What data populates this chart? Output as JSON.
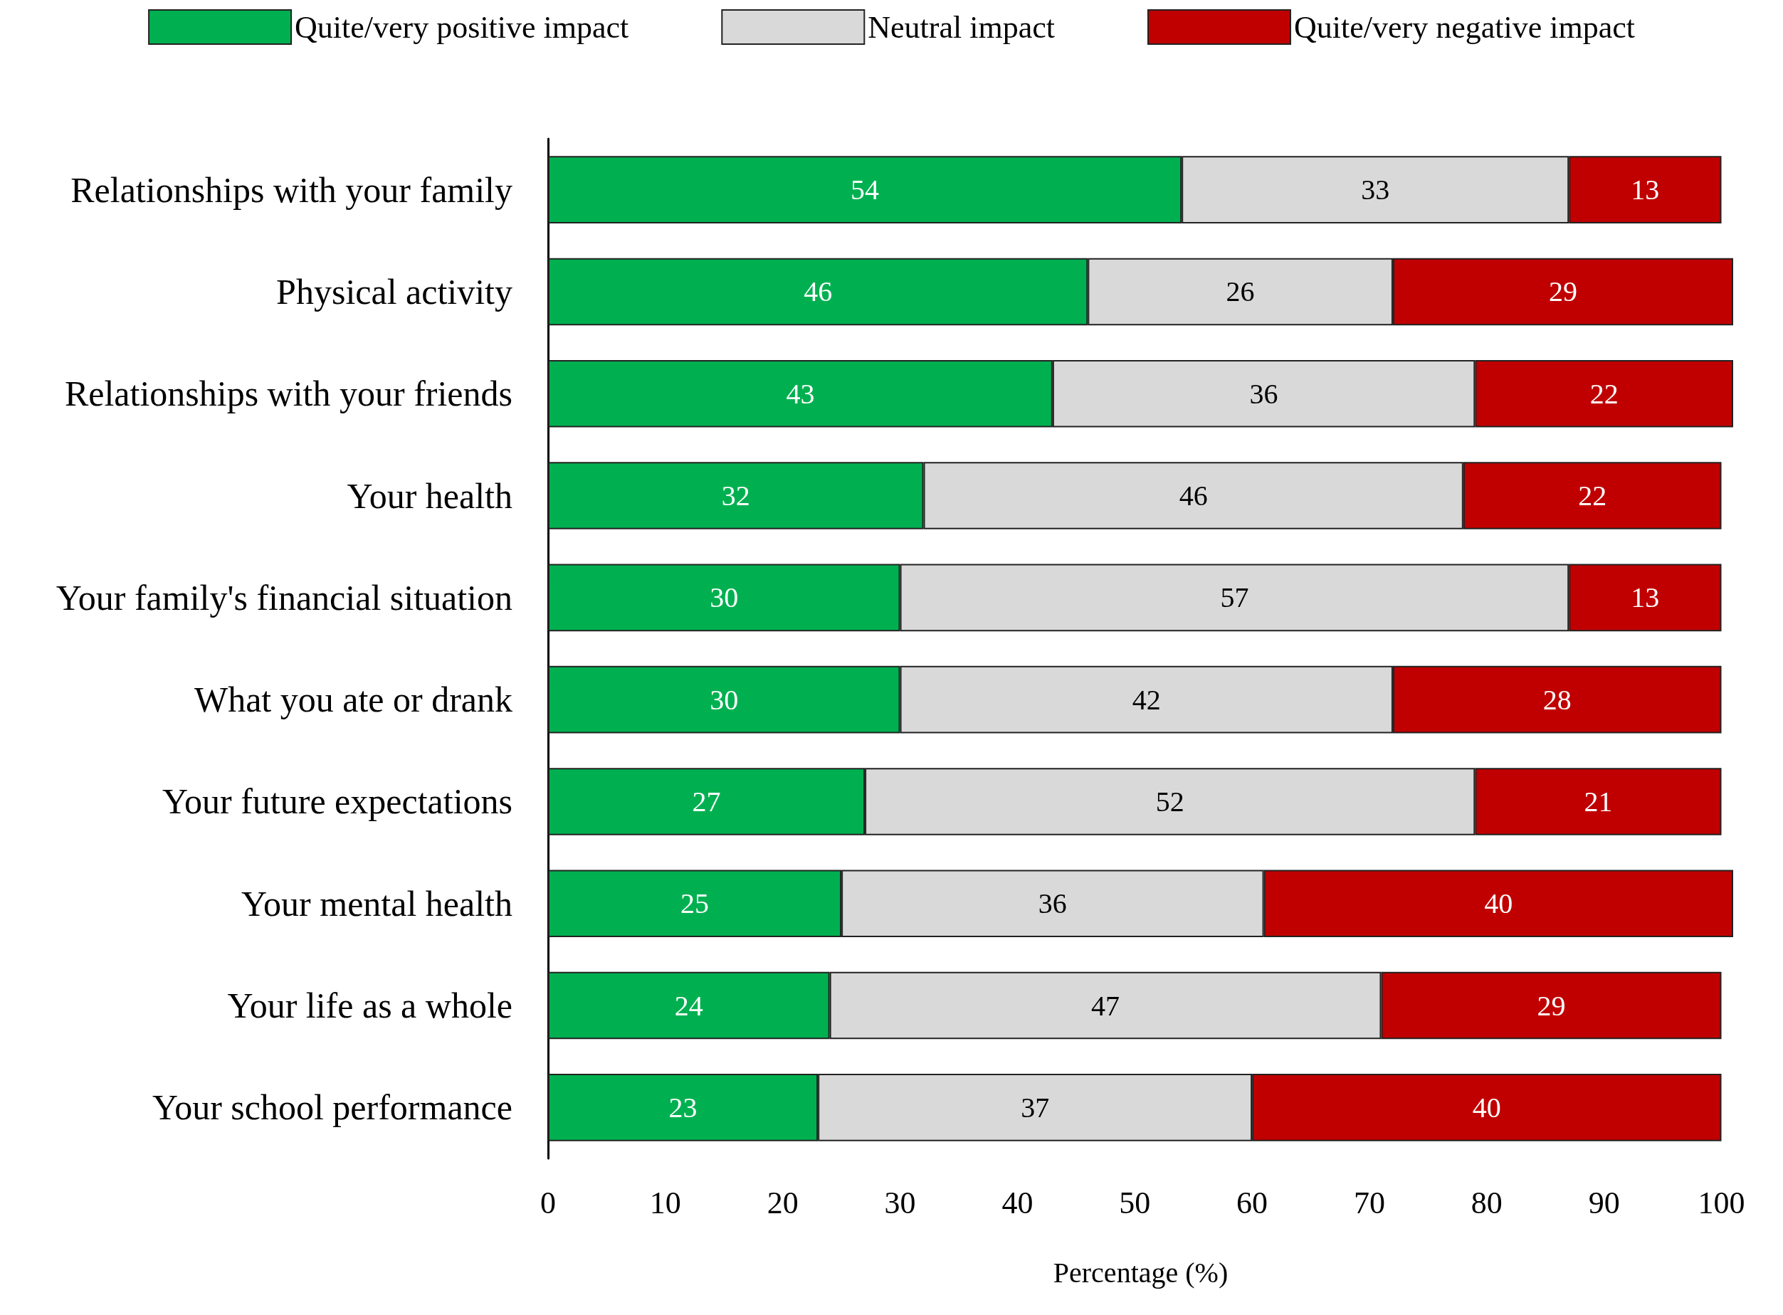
{
  "chart_data": {
    "type": "bar",
    "orientation": "horizontal",
    "stacked": true,
    "data_labels": true,
    "legend": "top",
    "grid": false,
    "xlabel": "Percentage (%)",
    "categories": [
      "Relationships with your family",
      "Physical activity",
      "Relationships with your friends",
      "Your health",
      "Your family's financial situation",
      "What you ate or drank",
      "Your future expectations",
      "Your mental health",
      "Your life as a whole",
      "Your school performance"
    ],
    "series": [
      {
        "name": "Quite/very positive impact",
        "color": "#00b050",
        "values": [
          54,
          46,
          43,
          32,
          30,
          30,
          27,
          25,
          24,
          23
        ]
      },
      {
        "name": "Neutral impact",
        "color": "#d9d9d9",
        "values": [
          33,
          26,
          36,
          46,
          57,
          42,
          52,
          36,
          47,
          37
        ]
      },
      {
        "name": "Quite/very negative impact",
        "color": "#c00000",
        "values": [
          13,
          29,
          22,
          22,
          13,
          28,
          21,
          40,
          29,
          40
        ]
      }
    ],
    "xlim": [
      0,
      101
    ],
    "xticks": [
      0,
      10,
      20,
      30,
      40,
      50,
      60,
      70,
      80,
      90,
      100
    ]
  }
}
